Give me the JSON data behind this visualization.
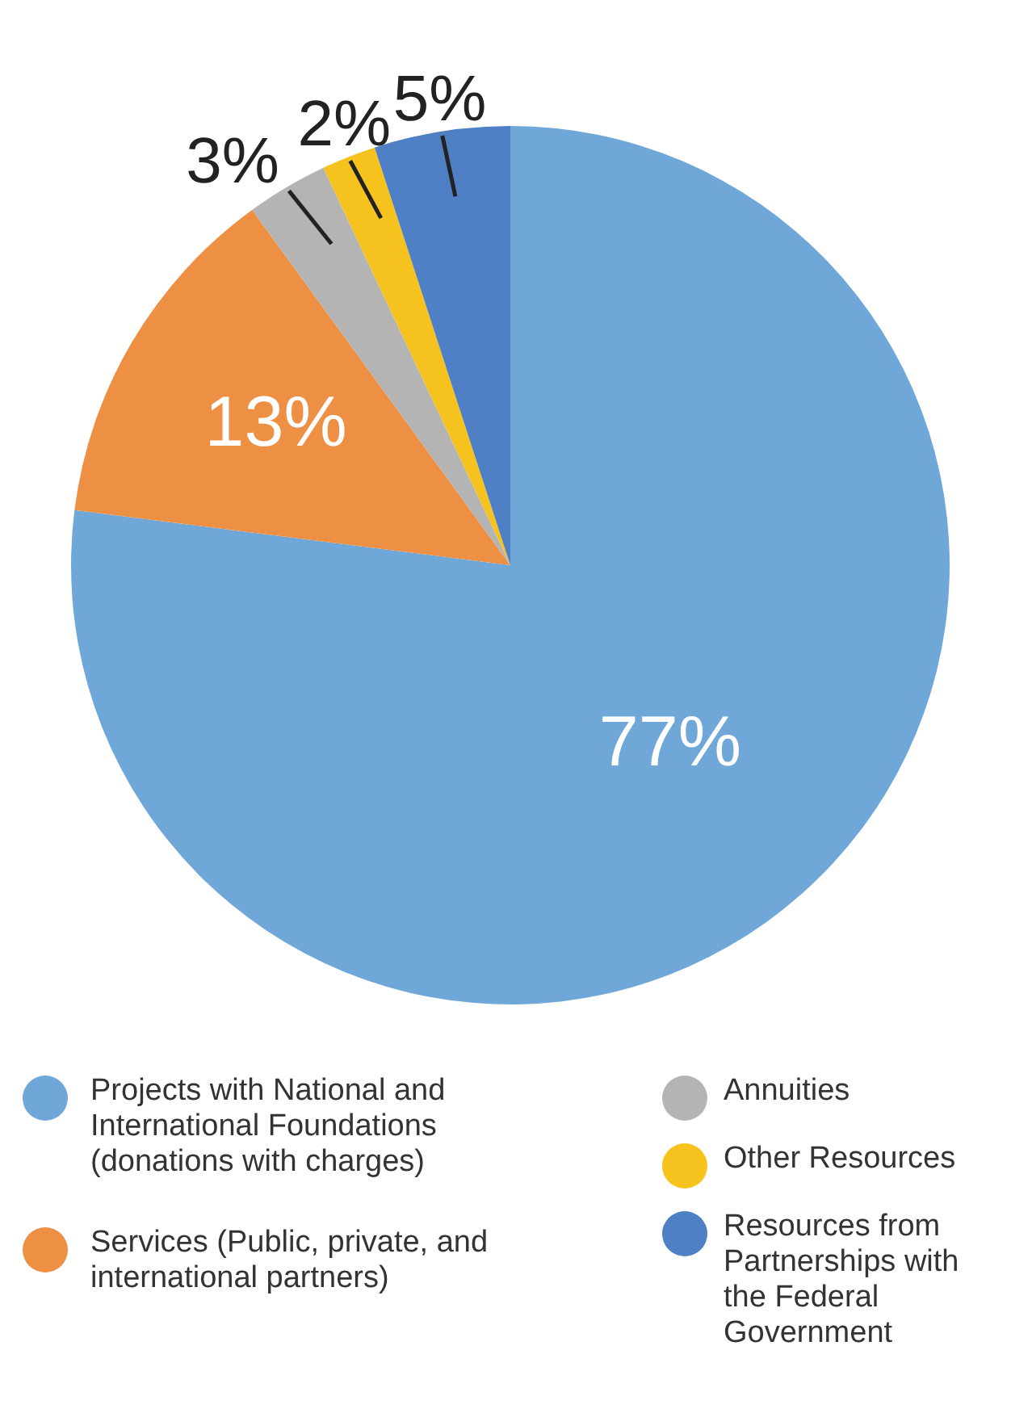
{
  "chart_data": {
    "type": "pie",
    "categories": [
      "Projects with National and International Foundations (donations with charges)",
      "Services (Public, private, and international partners)",
      "Annuities",
      "Other Resources",
      "Resources from Partnerships with the Federal Government"
    ],
    "values": [
      77,
      13,
      3,
      2,
      5
    ],
    "colors": [
      "#6fa8d8",
      "#ee9044",
      "#b4b4b4",
      "#f6c21e",
      "#4f7fc4"
    ],
    "value_labels": [
      "77%",
      "13%",
      "3%",
      "2%",
      "5%"
    ],
    "legend": "bottom"
  }
}
